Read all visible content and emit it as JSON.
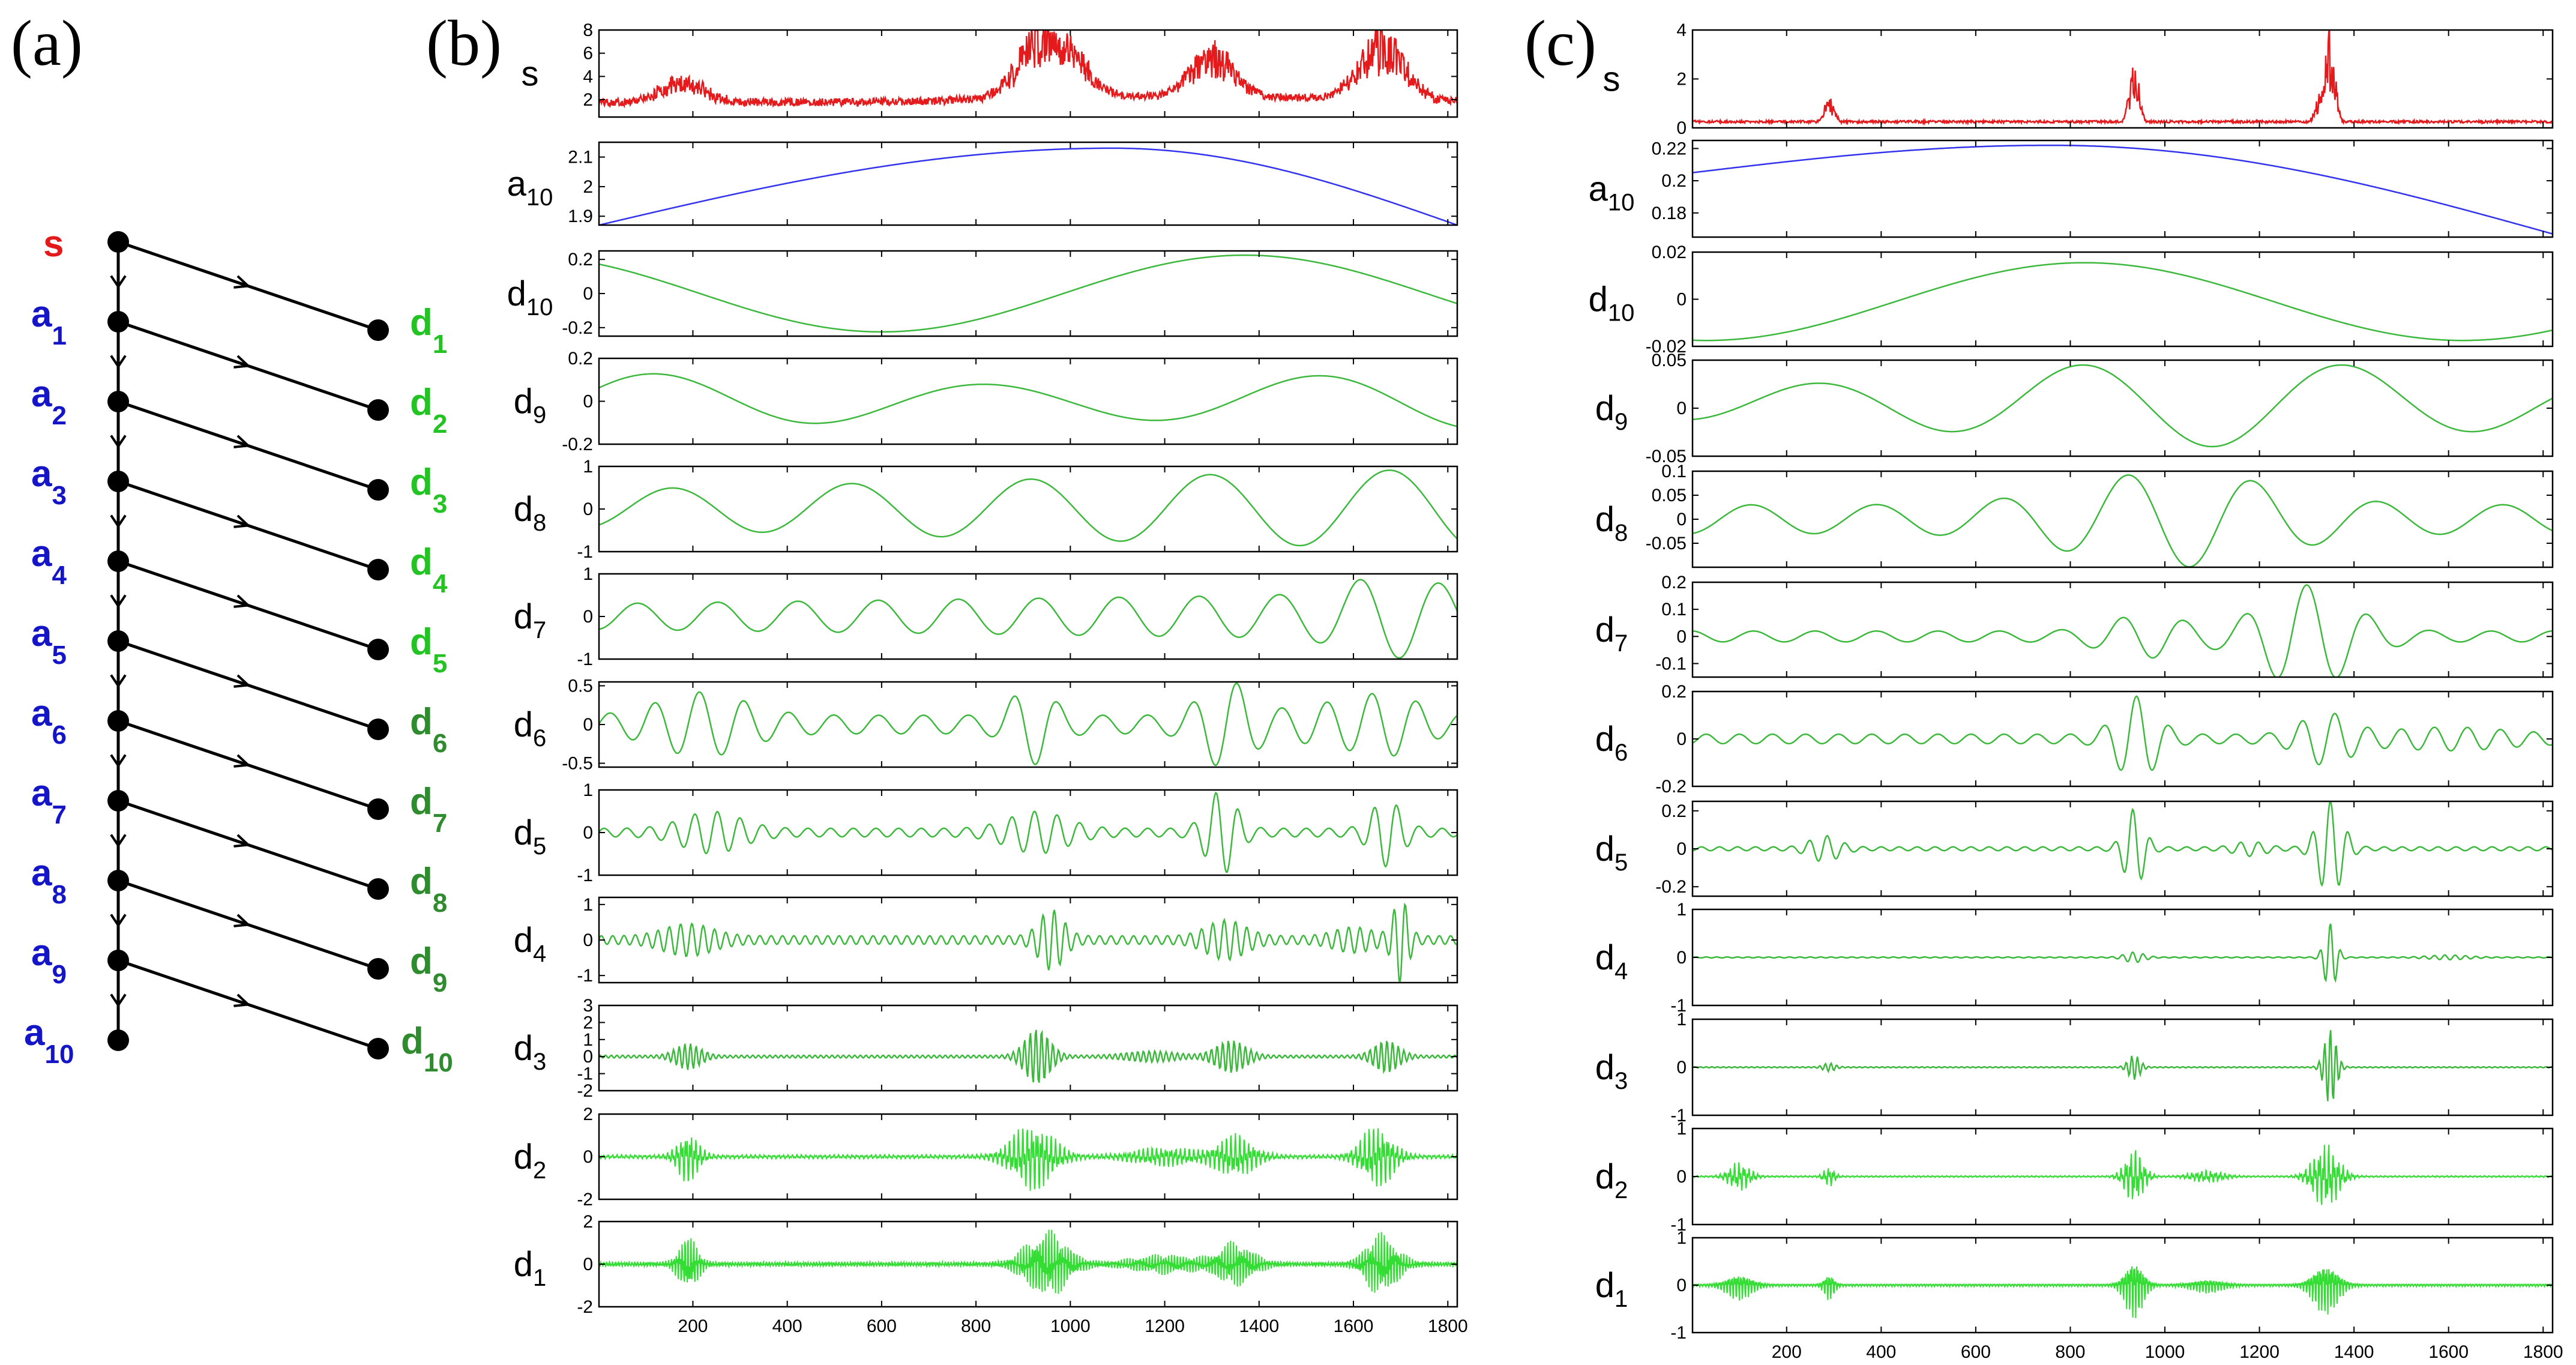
{
  "panel_labels": [
    "(a)",
    "(b)",
    "(c)"
  ],
  "tree": {
    "source": "s",
    "approx": [
      {
        "base": "a",
        "sub": "1"
      },
      {
        "base": "a",
        "sub": "2"
      },
      {
        "base": "a",
        "sub": "3"
      },
      {
        "base": "a",
        "sub": "4"
      },
      {
        "base": "a",
        "sub": "5"
      },
      {
        "base": "a",
        "sub": "6"
      },
      {
        "base": "a",
        "sub": "7"
      },
      {
        "base": "a",
        "sub": "8"
      },
      {
        "base": "a",
        "sub": "9"
      },
      {
        "base": "a",
        "sub": "10"
      }
    ],
    "detail": [
      {
        "base": "d",
        "sub": "1"
      },
      {
        "base": "d",
        "sub": "2"
      },
      {
        "base": "d",
        "sub": "3"
      },
      {
        "base": "d",
        "sub": "4"
      },
      {
        "base": "d",
        "sub": "5"
      },
      {
        "base": "d",
        "sub": "6"
      },
      {
        "base": "d",
        "sub": "7"
      },
      {
        "base": "d",
        "sub": "8"
      },
      {
        "base": "d",
        "sub": "9"
      },
      {
        "base": "d",
        "sub": "10"
      }
    ],
    "colors": {
      "source": "#e31a1c",
      "approx": "#1515c8",
      "detail_light": [
        "#22c322",
        "#22c322",
        "#22c322",
        "#22c322",
        "#22c322"
      ],
      "detail_dark": [
        "#2e8b2e",
        "#2e8b2e",
        "#2e8b2e",
        "#2e8b2e",
        "#2e8b2e"
      ]
    }
  },
  "chart_data": [
    {
      "type": "line",
      "title": "(b)",
      "x_range": [
        1,
        1820
      ],
      "x_ticks": [
        200,
        400,
        600,
        800,
        1000,
        1200,
        1400,
        1600,
        1800
      ],
      "colors": {
        "signal": "#e41a1c",
        "approx": "#3333ee",
        "detail": "#3cb83c",
        "detail_bright": "#33dd33"
      },
      "rows": [
        {
          "label": "s",
          "sub": "",
          "ylim": [
            0.5,
            8
          ],
          "yticks": [
            "2",
            "4",
            "6",
            "8"
          ],
          "ytick_values": [
            2,
            4,
            6,
            8
          ],
          "kind": "signal",
          "features": {
            "baseline": 1.8,
            "bursts": [
              [
                180,
                4.2
              ],
              [
                930,
                7.5
              ],
              [
                1000,
                5.5
              ],
              [
                1300,
                6.5
              ],
              [
                1660,
                7.8
              ]
            ]
          }
        },
        {
          "label": "a",
          "sub": "10",
          "ylim": [
            1.87,
            2.15
          ],
          "yticks": [
            "1.9",
            "2",
            "2.1"
          ],
          "ytick_values": [
            1.9,
            2.0,
            2.1
          ],
          "kind": "approx",
          "features": {
            "start": 1.87,
            "peak_x": 1090,
            "peak": 2.13,
            "end": 1.87
          }
        },
        {
          "label": "d",
          "sub": "10",
          "ylim": [
            -0.25,
            0.25
          ],
          "yticks": [
            "0.2",
            "0",
            "-0.2"
          ],
          "ytick_values": [
            0.2,
            0,
            -0.2
          ],
          "kind": "detail",
          "features": {
            "description": "single slow oscillation, min near x=600 (-0.22), max near x=1370 (0.23)"
          }
        },
        {
          "label": "d",
          "sub": "9",
          "ylim": [
            -0.2,
            0.2
          ],
          "yticks": [
            "0.2",
            "0",
            "-0.2"
          ],
          "ytick_values": [
            0.2,
            0,
            -0.2
          ],
          "kind": "detail",
          "features": {
            "description": "oscillation with minima near x=470 and x=1340"
          }
        },
        {
          "label": "d",
          "sub": "8",
          "ylim": [
            -1,
            1
          ],
          "yticks": [
            "1",
            "0",
            "-1"
          ],
          "ytick_values": [
            1,
            0,
            -1
          ],
          "kind": "detail",
          "features": {
            "description": "five cycles, amplitude 0.4 to 0.95"
          }
        },
        {
          "label": "d",
          "sub": "7",
          "ylim": [
            -1,
            1
          ],
          "yticks": [
            "1",
            "0",
            "-1"
          ],
          "ytick_values": [
            1,
            0,
            -1
          ],
          "kind": "detail",
          "features": {
            "description": "about ten cycles, growing to 0.95 near x=1700"
          }
        },
        {
          "label": "d",
          "sub": "6",
          "ylim": [
            -0.55,
            0.55
          ],
          "yticks": [
            "0.5",
            "0",
            "-0.5"
          ],
          "ytick_values": [
            0.5,
            0,
            -0.5
          ],
          "kind": "detail",
          "features": {
            "description": "packets near x=200, 920, 1330 reaching 0.5"
          }
        },
        {
          "label": "d",
          "sub": "5",
          "ylim": [
            -1,
            1
          ],
          "yticks": [
            "1",
            "0",
            "-1"
          ],
          "ytick_values": [
            1,
            0,
            -1
          ],
          "kind": "detail",
          "features": {
            "description": "packets near x=1320 (0.95) and x=1670"
          }
        },
        {
          "label": "d",
          "sub": "4",
          "ylim": [
            -1.2,
            1.2
          ],
          "yticks": [
            "1",
            "0",
            "-1"
          ],
          "ytick_values": [
            1,
            0,
            -1
          ],
          "kind": "detail",
          "features": {
            "description": "bursts near x=190, 960, 1320, 1700 (1.2)"
          }
        },
        {
          "label": "d",
          "sub": "3",
          "ylim": [
            -2,
            3
          ],
          "yticks": [
            "3",
            "2",
            "1",
            "0",
            "-1",
            "-2"
          ],
          "ytick_values": [
            3,
            2,
            1,
            0,
            -1,
            -2
          ],
          "kind": "detail",
          "features": {
            "description": "bursts near x=190, 930 (1.7), 1340, 1670"
          }
        },
        {
          "label": "d",
          "sub": "2",
          "ylim": [
            -2,
            2
          ],
          "yticks": [
            "2",
            "0",
            "-2"
          ],
          "ytick_values": [
            2,
            0,
            -2
          ],
          "kind": "detail_bright",
          "features": {
            "description": "high-frequency bursts near x=190, 920, 1350, 1650"
          }
        },
        {
          "label": "d",
          "sub": "1",
          "ylim": [
            -2,
            2
          ],
          "yticks": [
            "2",
            "0",
            "-2"
          ],
          "ytick_values": [
            2,
            0,
            -2
          ],
          "kind": "detail_bright",
          "features": {
            "description": "high-frequency bursts near x=190, 950, 1350, 1660"
          }
        }
      ]
    },
    {
      "type": "line",
      "title": "(c)",
      "x_range": [
        1,
        1820
      ],
      "x_ticks": [
        200,
        400,
        600,
        800,
        1000,
        1200,
        1400,
        1600,
        1800
      ],
      "colors": {
        "signal": "#e41a1c",
        "approx": "#3333ee",
        "detail": "#3cb83c",
        "detail_bright": "#33dd33"
      },
      "rows": [
        {
          "label": "s",
          "sub": "",
          "ylim": [
            0,
            4
          ],
          "yticks": [
            "0",
            "2",
            "4"
          ],
          "ytick_values": [
            0,
            2,
            4
          ],
          "kind": "signal",
          "features": {
            "baseline": 0.25,
            "bursts": [
              [
                290,
                1.3
              ],
              [
                935,
                2.8
              ],
              [
                1350,
                4.0
              ],
              [
                1330,
                1.5
              ]
            ]
          }
        },
        {
          "label": "a",
          "sub": "10",
          "ylim": [
            0.165,
            0.225
          ],
          "yticks": [
            "0.22",
            "0.2",
            "0.18"
          ],
          "ytick_values": [
            0.22,
            0.2,
            0.18
          ],
          "kind": "approx",
          "features": {
            "start": 0.205,
            "peak_x": 760,
            "peak": 0.222,
            "end": 0.167
          }
        },
        {
          "label": "d",
          "sub": "10",
          "ylim": [
            -0.02,
            0.02
          ],
          "yticks": [
            "0.02",
            "0",
            "-0.02"
          ],
          "ytick_values": [
            0.02,
            0,
            -0.02
          ],
          "kind": "detail",
          "features": {
            "description": "max near x=830 (0.016), min near x=1620 (-0.017)"
          }
        },
        {
          "label": "d",
          "sub": "9",
          "ylim": [
            -0.05,
            0.05
          ],
          "yticks": [
            "0.05",
            "0",
            "-0.05"
          ],
          "ytick_values": [
            0.05,
            0,
            -0.05
          ],
          "kind": "detail",
          "features": {
            "description": "peaks near x=820 and x=1370, trough near x=1060 (-0.05)"
          }
        },
        {
          "label": "d",
          "sub": "8",
          "ylim": [
            -0.1,
            0.1
          ],
          "yticks": [
            "0.1",
            "0.05",
            "0",
            "-0.05"
          ],
          "ytick_values": [
            0.1,
            0.05,
            0,
            -0.05
          ],
          "kind": "detail",
          "features": {
            "description": "largest swings near x=920 (0.1) and x=1150 (-0.1)"
          }
        },
        {
          "label": "d",
          "sub": "7",
          "ylim": [
            -0.15,
            0.2
          ],
          "yticks": [
            "0.2",
            "0.1",
            "0",
            "-0.1"
          ],
          "ytick_values": [
            0.2,
            0.1,
            0,
            -0.1
          ],
          "kind": "detail",
          "features": {
            "description": "packets near x=960 and x=1300 (0.2)"
          }
        },
        {
          "label": "d",
          "sub": "6",
          "ylim": [
            -0.2,
            0.2
          ],
          "yticks": [
            "0.2",
            "0",
            "-0.2"
          ],
          "ytick_values": [
            0.2,
            0,
            -0.2
          ],
          "kind": "detail",
          "features": {
            "description": "packets near x=940 (0.18) and x=1340"
          }
        },
        {
          "label": "d",
          "sub": "5",
          "ylim": [
            -0.25,
            0.25
          ],
          "yticks": [
            "0.2",
            "0",
            "-0.2"
          ],
          "ytick_values": [
            0.2,
            0,
            -0.2
          ],
          "kind": "detail",
          "features": {
            "description": "packets near x=935 and x=1350 (0.25)"
          }
        },
        {
          "label": "d",
          "sub": "4",
          "ylim": [
            -1,
            1
          ],
          "yticks": [
            "1",
            "0",
            "-1"
          ],
          "ytick_values": [
            1,
            0,
            -1
          ],
          "kind": "detail",
          "features": {
            "description": "spike near x=1350 (0.7)"
          }
        },
        {
          "label": "d",
          "sub": "3",
          "ylim": [
            -1,
            1
          ],
          "yticks": [
            "1",
            "0",
            "-1"
          ],
          "ytick_values": [
            1,
            0,
            -1
          ],
          "kind": "detail",
          "features": {
            "description": "spikes near x=935 and x=1350 (0.8)"
          }
        },
        {
          "label": "d",
          "sub": "2",
          "ylim": [
            -1,
            1
          ],
          "yticks": [
            "1",
            "0",
            "-1"
          ],
          "ytick_values": [
            1,
            0,
            -1
          ],
          "kind": "detail_bright",
          "features": {
            "description": "bursts near x=935 and x=1340"
          }
        },
        {
          "label": "d",
          "sub": "1",
          "ylim": [
            -1,
            1
          ],
          "yticks": [
            "1",
            "0",
            "-1"
          ],
          "ytick_values": [
            1,
            0,
            -1
          ],
          "kind": "detail_bright",
          "features": {
            "description": "bursts near x=935 and x=1340"
          }
        }
      ]
    }
  ]
}
